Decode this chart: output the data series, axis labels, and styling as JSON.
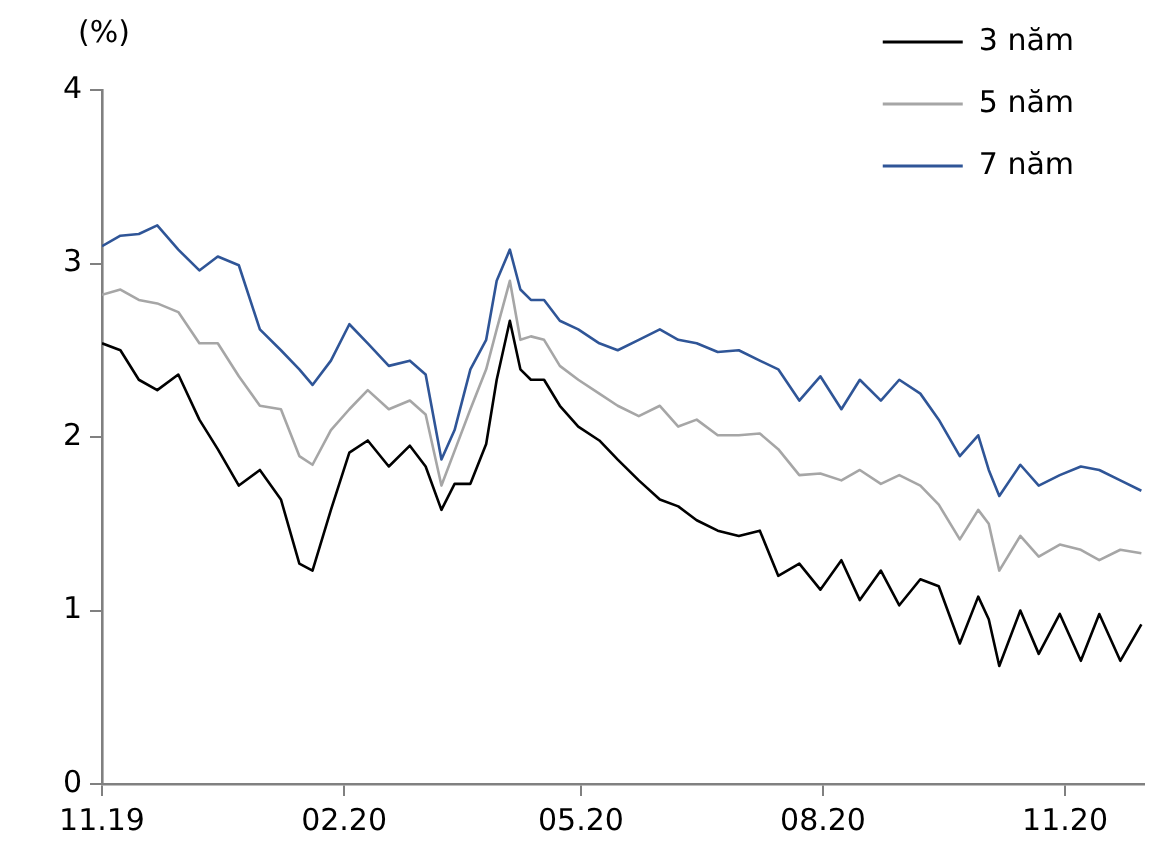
{
  "chart_data": {
    "type": "line",
    "ylabel": "(%)",
    "x": [
      "2019-11-01",
      "2019-11-08",
      "2019-11-15",
      "2019-11-22",
      "2019-11-30",
      "2019-12-08",
      "2019-12-15",
      "2019-12-23",
      "2019-12-31",
      "2020-01-08",
      "2020-01-15",
      "2020-01-20",
      "2020-01-27",
      "2020-02-03",
      "2020-02-10",
      "2020-02-18",
      "2020-02-26",
      "2020-03-03",
      "2020-03-09",
      "2020-03-14",
      "2020-03-20",
      "2020-03-26",
      "2020-03-30",
      "2020-04-04",
      "2020-04-08",
      "2020-04-12",
      "2020-04-17",
      "2020-04-23",
      "2020-04-30",
      "2020-05-08",
      "2020-05-15",
      "2020-05-23",
      "2020-05-31",
      "2020-06-07",
      "2020-06-14",
      "2020-06-22",
      "2020-06-30",
      "2020-07-08",
      "2020-07-15",
      "2020-07-23",
      "2020-07-31",
      "2020-08-08",
      "2020-08-15",
      "2020-08-23",
      "2020-08-30",
      "2020-09-07",
      "2020-09-14",
      "2020-09-22",
      "2020-09-29",
      "2020-10-03",
      "2020-10-07",
      "2020-10-15",
      "2020-10-22",
      "2020-10-30",
      "2020-11-07",
      "2020-11-14",
      "2020-11-22",
      "2020-11-30"
    ],
    "series": [
      {
        "name": "3 năm",
        "color": "#000000",
        "values": [
          2.54,
          2.5,
          2.33,
          2.27,
          2.36,
          2.1,
          1.93,
          1.72,
          1.81,
          1.64,
          1.27,
          1.23,
          1.58,
          1.91,
          1.98,
          1.83,
          1.95,
          1.83,
          1.58,
          1.73,
          1.73,
          1.96,
          2.33,
          2.67,
          2.39,
          2.33,
          2.33,
          2.18,
          2.06,
          1.98,
          1.87,
          1.75,
          1.64,
          1.6,
          1.52,
          1.46,
          1.43,
          1.46,
          1.2,
          1.27,
          1.12,
          1.29,
          1.06,
          1.23,
          1.03,
          1.18,
          1.14,
          0.81,
          1.08,
          0.95,
          0.68,
          1.0,
          0.75,
          0.98,
          0.71,
          0.98,
          0.71,
          0.92
        ]
      },
      {
        "name": "5 năm",
        "color": "#a6a6a6",
        "values": [
          2.82,
          2.85,
          2.79,
          2.77,
          2.72,
          2.54,
          2.54,
          2.35,
          2.18,
          2.16,
          1.89,
          1.84,
          2.04,
          2.16,
          2.27,
          2.16,
          2.21,
          2.13,
          1.72,
          1.92,
          2.16,
          2.39,
          2.62,
          2.9,
          2.56,
          2.58,
          2.56,
          2.41,
          2.33,
          2.25,
          2.18,
          2.12,
          2.18,
          2.06,
          2.1,
          2.01,
          2.01,
          2.02,
          1.93,
          1.78,
          1.79,
          1.75,
          1.81,
          1.73,
          1.78,
          1.72,
          1.61,
          1.41,
          1.58,
          1.5,
          1.23,
          1.43,
          1.31,
          1.38,
          1.35,
          1.29,
          1.35,
          1.33
        ]
      },
      {
        "name": "7 năm",
        "color": "#2f5597",
        "values": [
          3.1,
          3.16,
          3.17,
          3.22,
          3.08,
          2.96,
          3.04,
          2.99,
          2.62,
          2.5,
          2.39,
          2.3,
          2.44,
          2.65,
          2.54,
          2.41,
          2.44,
          2.36,
          1.87,
          2.04,
          2.39,
          2.56,
          2.9,
          3.08,
          2.85,
          2.79,
          2.79,
          2.67,
          2.62,
          2.54,
          2.5,
          2.56,
          2.62,
          2.56,
          2.54,
          2.49,
          2.5,
          2.44,
          2.39,
          2.21,
          2.35,
          2.16,
          2.33,
          2.21,
          2.33,
          2.25,
          2.1,
          1.89,
          2.01,
          1.81,
          1.66,
          1.84,
          1.72,
          1.78,
          1.83,
          1.81,
          1.75,
          1.69
        ]
      }
    ],
    "xlim": [
      "2019-11-01",
      "2020-12-01"
    ],
    "xticks": [
      {
        "value": "2019-11-01",
        "label": "11.19"
      },
      {
        "value": "2020-02-01",
        "label": "02.20"
      },
      {
        "value": "2020-05-01",
        "label": "05.20"
      },
      {
        "value": "2020-08-01",
        "label": "08.20"
      },
      {
        "value": "2020-11-01",
        "label": "11.20"
      }
    ],
    "ylim": [
      0,
      4
    ],
    "yticks": [
      0,
      1,
      2,
      3,
      4
    ],
    "grid": false,
    "legend": "top right",
    "marker": "none",
    "line_style": "solid"
  }
}
